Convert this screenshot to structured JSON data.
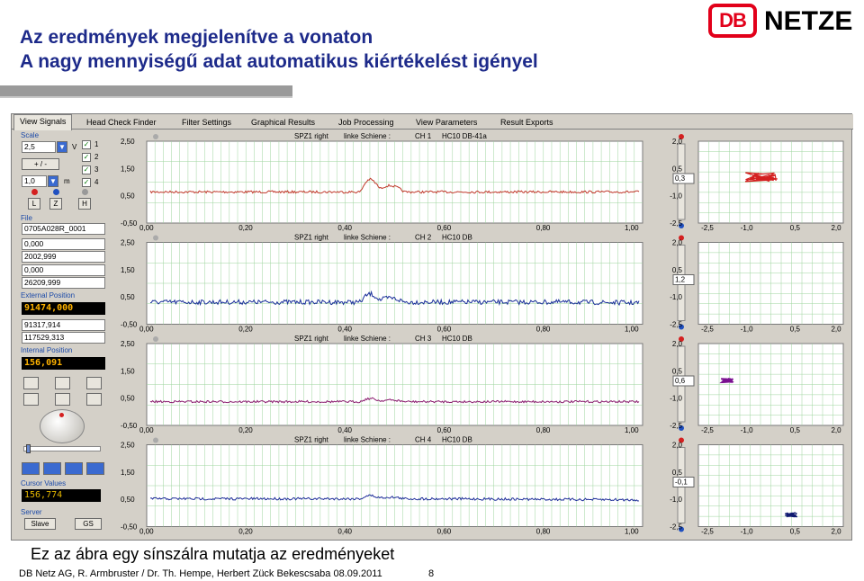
{
  "slide": {
    "title_line1": "Az eredmények megjelenítve a vonaton",
    "title_line2": "A nagy mennyiségű adat automatikus kiértékelést igényel",
    "caption": "Ez az ábra egy sínszálra mutatja az eredményeket",
    "footer": "DB Netz AG, R. Armbruster / Dr. Th. Hempe, Herbert Zück Bekescsaba 08.09.2011",
    "page_number": "8"
  },
  "logo": {
    "db": "DB",
    "netze": "NETZE",
    "color": "#e2001a"
  },
  "tabs": [
    "View Signals",
    "Head Check Finder",
    "Filter Settings",
    "Graphical Results",
    "Job Processing",
    "View Parameters",
    "Result Exports"
  ],
  "active_tab": "View Signals",
  "left_panel": {
    "scale_label": "Scale",
    "scale_value": "2,5",
    "scale_unit": "V",
    "plusminus_label": "+ / -",
    "length_value": "1,0",
    "length_unit": "m",
    "channels": [
      "1",
      "2",
      "3",
      "4"
    ],
    "buttons_lzh": [
      "L",
      "Z",
      "H"
    ],
    "file_label": "File",
    "file_name": "0705A028R_0001",
    "file_values": [
      "0,000",
      "2002,999",
      "0,000",
      "26209,999"
    ],
    "external_position_label": "External Position",
    "external_position_value": "91474,000",
    "external_values": [
      "91317,914",
      "117529,313"
    ],
    "internal_position_label": "Internal Position",
    "internal_position_value": "156,091",
    "cursor_values_label": "Cursor Values",
    "cursor_value": "156,774",
    "server_label": "Server",
    "server_buttons": [
      "Slave",
      "GS"
    ]
  },
  "channel_meta": {
    "y_ticks": [
      "2,50",
      "1,50",
      "0,50",
      "-0,50"
    ],
    "x_ticks": [
      "0,00",
      "0,20",
      "0,40",
      "0,60",
      "0,80",
      "1,00"
    ],
    "xy_y_ticks": [
      "2,0",
      "0,5",
      "-1,0",
      "-2,5"
    ],
    "xy_x_ticks": [
      "-2,5",
      "-1,0",
      "0,5",
      "2,0"
    ]
  },
  "channels": [
    {
      "title_left": "SPZ1 right",
      "title_mid": "linke Schiene :",
      "title_ch": "CH 1",
      "title_probe": "HC10 DB-41a",
      "color": "#c0392b",
      "side_value": "0,3",
      "xy_color": "#d42020"
    },
    {
      "title_left": "SPZ1 right",
      "title_mid": "linke Schiene :",
      "title_ch": "CH 2",
      "title_probe": "HC10 DB",
      "color": "#1a2f9a",
      "side_value": "1,2",
      "xy_color": "#1a2f9a"
    },
    {
      "title_left": "SPZ1 right",
      "title_mid": "linke Schiene :",
      "title_ch": "CH 3",
      "title_probe": "HC10 DB",
      "color": "#8a1c6e",
      "side_value": "0,6",
      "xy_color": "#7a1090"
    },
    {
      "title_left": "SPZ1 right",
      "title_mid": "linke Schiene :",
      "title_ch": "CH 4",
      "title_probe": "HC10 DB",
      "color": "#20309a",
      "side_value": "-0,1",
      "xy_color": "#101a70"
    }
  ]
}
